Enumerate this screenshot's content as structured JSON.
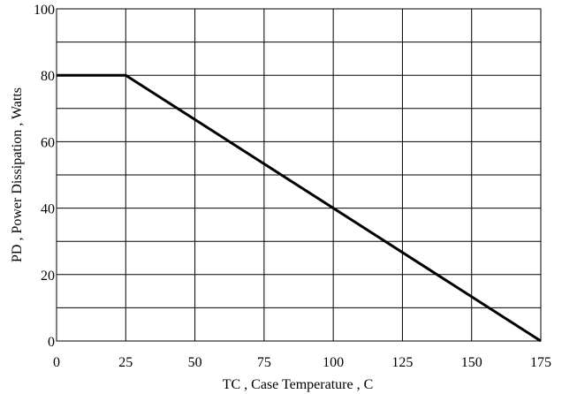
{
  "chart_data": {
    "type": "line",
    "title": "",
    "xlabel": "TC , Case Temperature , C",
    "ylabel": "PD , Power Dissipation ,   Watts",
    "xlim": [
      0,
      175
    ],
    "ylim": [
      0,
      100
    ],
    "x_ticks": [
      0,
      25,
      50,
      75,
      100,
      125,
      150,
      175
    ],
    "y_ticks": [
      0,
      20,
      40,
      60,
      80,
      100
    ],
    "x_tick_labels": [
      "0",
      "25",
      "50",
      "75",
      "100",
      "125",
      "150",
      "175"
    ],
    "y_tick_labels": [
      "0",
      "20",
      "40",
      "60",
      "80",
      "100"
    ],
    "grid": true,
    "legend": "none",
    "series": [
      {
        "x": [
          0,
          25,
          175
        ],
        "y": [
          80,
          80,
          0
        ],
        "color": "#000000"
      }
    ]
  }
}
